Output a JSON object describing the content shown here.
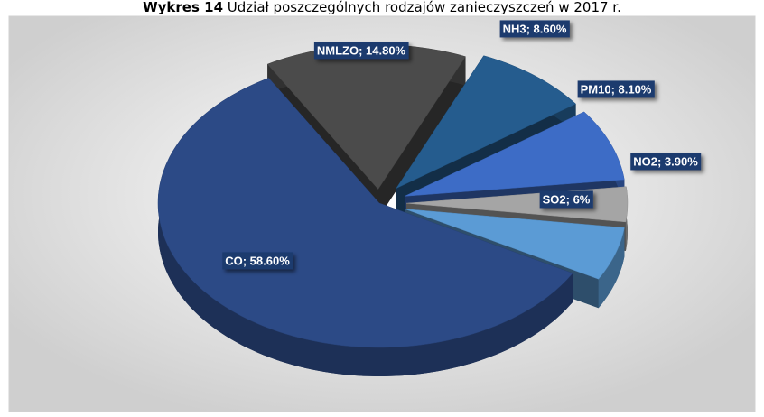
{
  "chart_data": {
    "type": "pie3d",
    "figure_label": "Wykres 14",
    "title": "Udział poszczególnych rodzajów zanieczyszczeń w 2017 r.",
    "values": [
      14.8,
      8.6,
      8.1,
      3.9,
      6,
      58.6
    ],
    "value_labels": [
      "NMLZO; 14.80%",
      "NH3; 8.60%",
      "PM10; 8.10%",
      "NO2; 3.90%",
      "SO2; 6%",
      "CO; 58.60%"
    ],
    "colors": [
      "#4b4b4b",
      "#255c8e",
      "#3d6cc6",
      "#a5a5a5",
      "#5b9bd5",
      "#2c4a86"
    ]
  }
}
